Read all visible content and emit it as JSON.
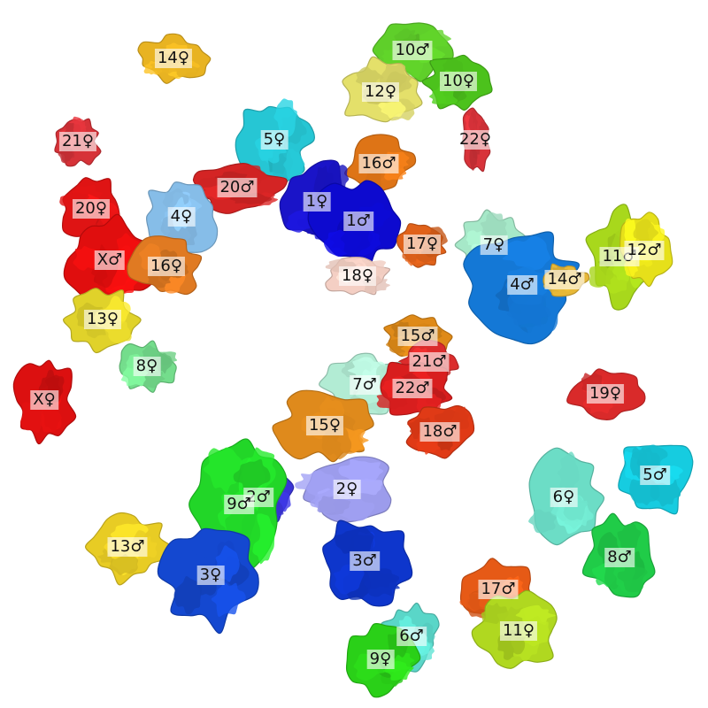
{
  "colors": {
    "background": "#ffffff",
    "label_box": "rgba(255,255,255,0.62)",
    "label_text": "#111111"
  },
  "chromosomes": [
    {
      "id": "14f",
      "label": "14♀",
      "color": "#e8b322"
    },
    {
      "id": "10m",
      "label": "10♂",
      "color": "#5fcf2a"
    },
    {
      "id": "10f",
      "label": "10♀",
      "color": "#4cc21c"
    },
    {
      "id": "12f",
      "label": "12♀",
      "color": "#e4e06a"
    },
    {
      "id": "22f",
      "label": "22♀",
      "color": "#d8333a"
    },
    {
      "id": "21f",
      "label": "21♀",
      "color": "#d63238"
    },
    {
      "id": "5f",
      "label": "5♀",
      "color": "#26c6d4"
    },
    {
      "id": "16m",
      "label": "16♂",
      "color": "#de7416"
    },
    {
      "id": "20m",
      "label": "20♂",
      "color": "#d42424"
    },
    {
      "id": "1f",
      "label": "1♀",
      "color": "#1a14c8"
    },
    {
      "id": "1m",
      "label": "1♂",
      "color": "#0d0acf"
    },
    {
      "id": "20f",
      "label": "20♀",
      "color": "#df1414"
    },
    {
      "id": "4f",
      "label": "4♀",
      "color": "#86bde8"
    },
    {
      "id": "17f",
      "label": "17♀",
      "color": "#e0621a"
    },
    {
      "id": "7f",
      "label": "7♀",
      "color": "#a6e8c8"
    },
    {
      "id": "11m",
      "label": "11♂",
      "color": "#a8d81c"
    },
    {
      "id": "12m",
      "label": "12♂",
      "color": "#e6e01a"
    },
    {
      "id": "Xm",
      "label": "X♂",
      "color": "#e00e0e"
    },
    {
      "id": "16f",
      "label": "16♀",
      "color": "#e07a22"
    },
    {
      "id": "18f",
      "label": "18♀",
      "color": "#f4cfc4"
    },
    {
      "id": "4m",
      "label": "4♂",
      "color": "#1478d6"
    },
    {
      "id": "14m",
      "label": "14♂",
      "color": "#e7b838"
    },
    {
      "id": "13f",
      "label": "13♀",
      "color": "#e0d22a"
    },
    {
      "id": "15m",
      "label": "15♂",
      "color": "#df8a18"
    },
    {
      "id": "8f",
      "label": "8♀",
      "color": "#74dd8c"
    },
    {
      "id": "21m",
      "label": "21♂",
      "color": "#db2c2c"
    },
    {
      "id": "7m",
      "label": "7♂",
      "color": "#b2ecd4"
    },
    {
      "id": "22m",
      "label": "22♂",
      "color": "#d81e1e"
    },
    {
      "id": "Xf",
      "label": "X♀",
      "color": "#dc1010"
    },
    {
      "id": "19f",
      "label": "19♀",
      "color": "#d92a2a"
    },
    {
      "id": "15f",
      "label": "15♀",
      "color": "#df8a1c"
    },
    {
      "id": "18m",
      "label": "18♂",
      "color": "#e03a16"
    },
    {
      "id": "5m",
      "label": "5♂",
      "color": "#16cce0"
    },
    {
      "id": "2m",
      "label": "2♂",
      "color": "#3a34d6"
    },
    {
      "id": "9m",
      "label": "9♂",
      "color": "#22d628"
    },
    {
      "id": "2f",
      "label": "2♀",
      "color": "#9c9cec"
    },
    {
      "id": "6f",
      "label": "6♀",
      "color": "#6cddc6"
    },
    {
      "id": "13m",
      "label": "13♂",
      "color": "#e8cc24"
    },
    {
      "id": "3f",
      "label": "3♀",
      "color": "#1448d0"
    },
    {
      "id": "3m",
      "label": "3♂",
      "color": "#0e36cc"
    },
    {
      "id": "8m",
      "label": "8♂",
      "color": "#20cc48"
    },
    {
      "id": "17m",
      "label": "17♂",
      "color": "#e65a16"
    },
    {
      "id": "11f",
      "label": "11♀",
      "color": "#b0d820"
    },
    {
      "id": "6m",
      "label": "6♂",
      "color": "#5ad6c8"
    },
    {
      "id": "9f",
      "label": "9♀",
      "color": "#2ad018"
    }
  ]
}
